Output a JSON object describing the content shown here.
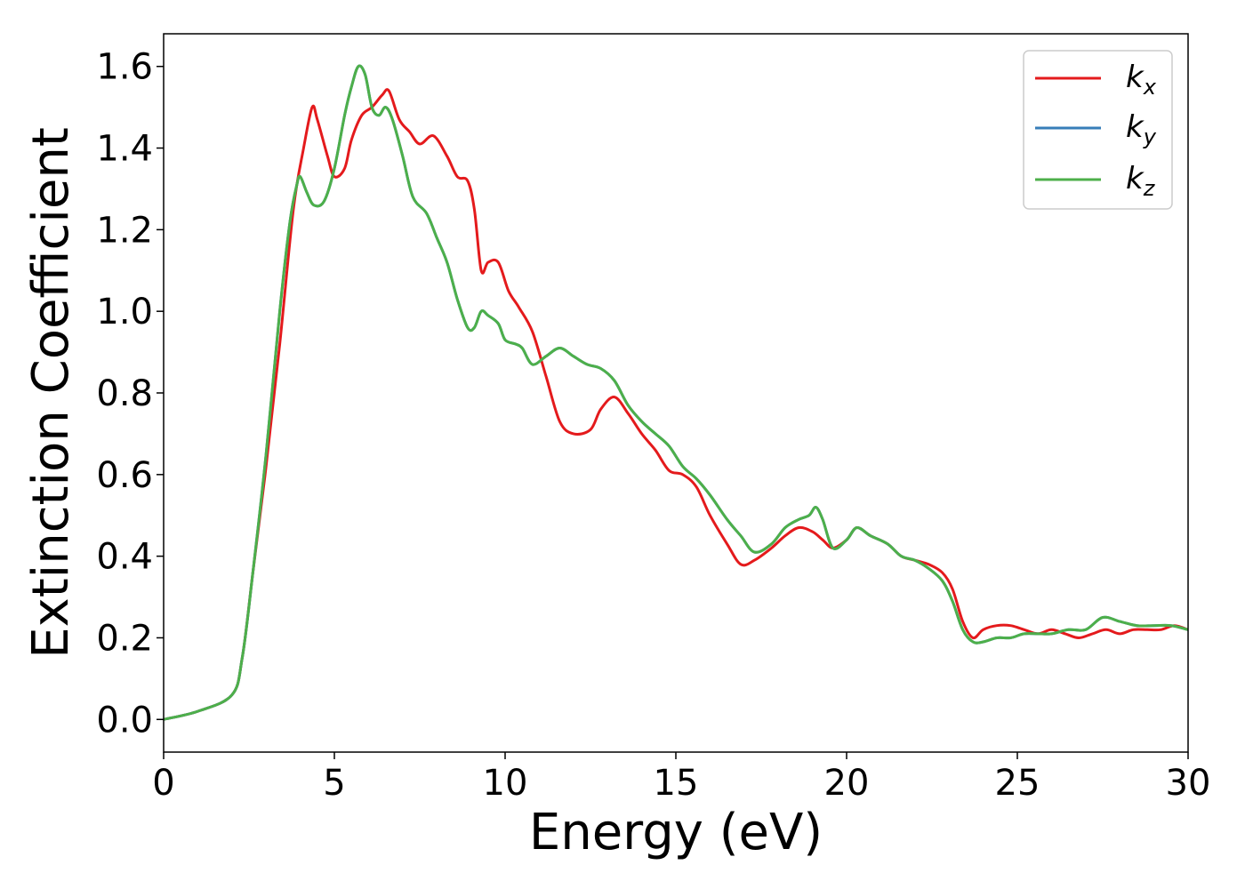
{
  "chart_data": {
    "type": "line",
    "title": "",
    "xlabel": "Energy (eV)",
    "ylabel": "Extinction Coefficient",
    "xlim": [
      0,
      30
    ],
    "ylim": [
      -0.08,
      1.68
    ],
    "xticks": [
      0,
      5,
      10,
      15,
      20,
      25,
      30
    ],
    "xtick_labels": [
      "0",
      "5",
      "10",
      "15",
      "20",
      "25",
      "30"
    ],
    "yticks": [
      0.0,
      0.2,
      0.4,
      0.6,
      0.8,
      1.0,
      1.2,
      1.4,
      1.6
    ],
    "ytick_labels": [
      "0.0",
      "0.2",
      "0.4",
      "0.6",
      "0.8",
      "1.0",
      "1.2",
      "1.4",
      "1.6"
    ],
    "grid": false,
    "legend_position": "top-right",
    "series": [
      {
        "name": "k",
        "sub": "x",
        "color": "#e41a1c",
        "x": [
          0,
          1,
          2,
          2.3,
          2.6,
          3.0,
          3.4,
          3.8,
          4.1,
          4.35,
          4.5,
          4.8,
          5.0,
          5.3,
          5.5,
          5.8,
          6.1,
          6.4,
          6.6,
          6.9,
          7.2,
          7.5,
          7.9,
          8.3,
          8.6,
          8.9,
          9.1,
          9.3,
          9.5,
          9.8,
          10.1,
          10.4,
          10.8,
          11.2,
          11.6,
          12.0,
          12.5,
          12.8,
          13.2,
          13.6,
          14.0,
          14.4,
          14.8,
          15.2,
          15.6,
          16.0,
          16.5,
          16.9,
          17.3,
          17.8,
          18.2,
          18.6,
          19.0,
          19.3,
          19.6,
          20.0,
          20.3,
          20.7,
          21.2,
          21.6,
          22.0,
          22.4,
          22.8,
          23.1,
          23.4,
          23.7,
          24.0,
          24.4,
          24.8,
          25.2,
          25.6,
          26.0,
          26.4,
          26.8,
          27.2,
          27.6,
          28.0,
          28.4,
          28.8,
          29.2,
          29.6,
          30.0
        ],
        "values": [
          0.0,
          0.02,
          0.06,
          0.15,
          0.35,
          0.62,
          0.92,
          1.25,
          1.4,
          1.5,
          1.47,
          1.38,
          1.33,
          1.35,
          1.42,
          1.48,
          1.5,
          1.53,
          1.54,
          1.47,
          1.44,
          1.41,
          1.43,
          1.38,
          1.33,
          1.32,
          1.25,
          1.1,
          1.12,
          1.12,
          1.05,
          1.01,
          0.95,
          0.84,
          0.73,
          0.7,
          0.71,
          0.76,
          0.79,
          0.75,
          0.7,
          0.66,
          0.61,
          0.6,
          0.57,
          0.5,
          0.43,
          0.38,
          0.39,
          0.42,
          0.45,
          0.47,
          0.46,
          0.44,
          0.42,
          0.44,
          0.47,
          0.45,
          0.43,
          0.4,
          0.39,
          0.38,
          0.36,
          0.32,
          0.24,
          0.2,
          0.22,
          0.23,
          0.23,
          0.22,
          0.21,
          0.22,
          0.21,
          0.2,
          0.21,
          0.22,
          0.21,
          0.22,
          0.22,
          0.22,
          0.23,
          0.22
        ]
      },
      {
        "name": "k",
        "sub": "y",
        "color": "#377eb8",
        "x": [
          0,
          1,
          2,
          2.3,
          2.6,
          3.0,
          3.4,
          3.7,
          3.9,
          4.0,
          4.2,
          4.4,
          4.7,
          5.0,
          5.3,
          5.5,
          5.7,
          5.9,
          6.1,
          6.3,
          6.5,
          6.7,
          7.0,
          7.3,
          7.7,
          8.0,
          8.3,
          8.6,
          8.9,
          9.1,
          9.3,
          9.5,
          9.8,
          10.0,
          10.3,
          10.5,
          10.8,
          11.2,
          11.6,
          12.0,
          12.4,
          12.8,
          13.2,
          13.6,
          14.0,
          14.4,
          14.8,
          15.2,
          15.6,
          16.0,
          16.5,
          16.9,
          17.3,
          17.8,
          18.2,
          18.6,
          18.9,
          19.1,
          19.3,
          19.6,
          20.0,
          20.3,
          20.7,
          21.2,
          21.6,
          22.0,
          22.4,
          22.8,
          23.1,
          23.4,
          23.7,
          24.0,
          24.4,
          24.8,
          25.2,
          25.6,
          26.0,
          26.5,
          27.0,
          27.5,
          28.0,
          28.5,
          29.0,
          29.5,
          30.0
        ],
        "values": [
          0.0,
          0.02,
          0.06,
          0.15,
          0.35,
          0.65,
          1.0,
          1.22,
          1.31,
          1.33,
          1.29,
          1.26,
          1.27,
          1.35,
          1.48,
          1.55,
          1.6,
          1.58,
          1.5,
          1.48,
          1.5,
          1.47,
          1.38,
          1.28,
          1.24,
          1.18,
          1.12,
          1.03,
          0.96,
          0.96,
          1.0,
          0.99,
          0.97,
          0.93,
          0.92,
          0.91,
          0.87,
          0.89,
          0.91,
          0.89,
          0.87,
          0.86,
          0.83,
          0.77,
          0.73,
          0.7,
          0.67,
          0.62,
          0.59,
          0.55,
          0.49,
          0.45,
          0.41,
          0.43,
          0.47,
          0.49,
          0.5,
          0.52,
          0.49,
          0.42,
          0.44,
          0.47,
          0.45,
          0.43,
          0.4,
          0.39,
          0.37,
          0.34,
          0.29,
          0.22,
          0.19,
          0.19,
          0.2,
          0.2,
          0.21,
          0.21,
          0.21,
          0.22,
          0.22,
          0.25,
          0.24,
          0.23,
          0.23,
          0.23,
          0.22
        ]
      },
      {
        "name": "k",
        "sub": "z",
        "color": "#4daf4a",
        "x": [
          0,
          1,
          2,
          2.3,
          2.6,
          3.0,
          3.4,
          3.7,
          3.9,
          4.0,
          4.2,
          4.4,
          4.7,
          5.0,
          5.3,
          5.5,
          5.7,
          5.9,
          6.1,
          6.3,
          6.5,
          6.7,
          7.0,
          7.3,
          7.7,
          8.0,
          8.3,
          8.6,
          8.9,
          9.1,
          9.3,
          9.5,
          9.8,
          10.0,
          10.3,
          10.5,
          10.8,
          11.2,
          11.6,
          12.0,
          12.4,
          12.8,
          13.2,
          13.6,
          14.0,
          14.4,
          14.8,
          15.2,
          15.6,
          16.0,
          16.5,
          16.9,
          17.3,
          17.8,
          18.2,
          18.6,
          18.9,
          19.1,
          19.3,
          19.6,
          20.0,
          20.3,
          20.7,
          21.2,
          21.6,
          22.0,
          22.4,
          22.8,
          23.1,
          23.4,
          23.7,
          24.0,
          24.4,
          24.8,
          25.2,
          25.6,
          26.0,
          26.5,
          27.0,
          27.5,
          28.0,
          28.5,
          29.0,
          29.5,
          30.0
        ],
        "values": [
          0.0,
          0.02,
          0.06,
          0.15,
          0.35,
          0.65,
          1.0,
          1.22,
          1.31,
          1.33,
          1.29,
          1.26,
          1.27,
          1.35,
          1.48,
          1.55,
          1.6,
          1.58,
          1.5,
          1.48,
          1.5,
          1.47,
          1.38,
          1.28,
          1.24,
          1.18,
          1.12,
          1.03,
          0.96,
          0.96,
          1.0,
          0.99,
          0.97,
          0.93,
          0.92,
          0.91,
          0.87,
          0.89,
          0.91,
          0.89,
          0.87,
          0.86,
          0.83,
          0.77,
          0.73,
          0.7,
          0.67,
          0.62,
          0.59,
          0.55,
          0.49,
          0.45,
          0.41,
          0.43,
          0.47,
          0.49,
          0.5,
          0.52,
          0.49,
          0.42,
          0.44,
          0.47,
          0.45,
          0.43,
          0.4,
          0.39,
          0.37,
          0.34,
          0.29,
          0.22,
          0.19,
          0.19,
          0.2,
          0.2,
          0.21,
          0.21,
          0.21,
          0.22,
          0.22,
          0.25,
          0.24,
          0.23,
          0.23,
          0.23,
          0.22
        ]
      }
    ]
  }
}
